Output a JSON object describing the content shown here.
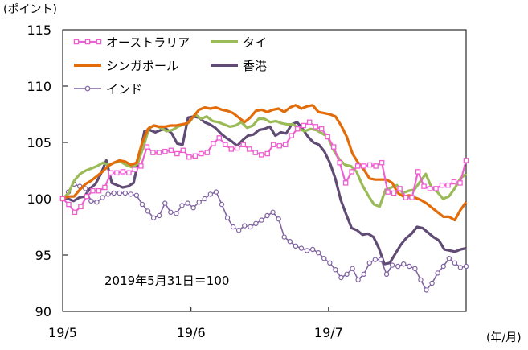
{
  "chart_data": {
    "type": "line",
    "unit_label": "(ポイント)",
    "x_unit_label": "(年/月)",
    "annotation": "2019年5月31日＝100",
    "ylim": [
      90,
      115
    ],
    "yticks": [
      90,
      95,
      100,
      105,
      110,
      115
    ],
    "xlim": [
      0,
      44
    ],
    "xticks": [
      {
        "x": 0,
        "label": "19/5"
      },
      {
        "x": 14,
        "label": "19/6"
      },
      {
        "x": 29,
        "label": "19/7"
      }
    ],
    "grid": false,
    "legend_position": "top-left",
    "series": [
      {
        "name": "オーストラリア",
        "color": "#ee5fd0",
        "marker": "square",
        "values": [
          100.0,
          99.5,
          98.8,
          99.3,
          100.2,
          100.7,
          100.7,
          101.0,
          102.3,
          102.3,
          102.4,
          102.3,
          102.6,
          102.9,
          104.6,
          104.1,
          104.1,
          104.2,
          104.3,
          104.0,
          104.3,
          103.7,
          103.8,
          104.0,
          104.1,
          104.9,
          105.4,
          104.8,
          104.4,
          104.5,
          104.8,
          104.4,
          104.1,
          103.9,
          104.0,
          104.8,
          104.7,
          104.8,
          105.6,
          106.2,
          106.5,
          106.8,
          106.4,
          106.2,
          105.5,
          104.6,
          103.2,
          101.4,
          102.4,
          102.9,
          102.9,
          103.0,
          102.9,
          103.2,
          100.6,
          100.5,
          100.9,
          100.1,
          100.1,
          102.4,
          101.1,
          100.9,
          100.9,
          101.2,
          101.2,
          101.5,
          101.4,
          103.4
        ]
      },
      {
        "name": "シンガポール",
        "color": "#e36c0a",
        "marker": "none",
        "values": [
          100.0,
          100.2,
          100.2,
          100.8,
          101.3,
          101.6,
          102.0,
          102.4,
          102.9,
          103.2,
          103.4,
          103.3,
          103.0,
          103.2,
          105.0,
          106.2,
          106.5,
          106.4,
          106.4,
          106.5,
          106.5,
          106.6,
          106.7,
          107.3,
          107.9,
          108.1,
          108.0,
          108.1,
          107.9,
          107.8,
          107.6,
          107.2,
          106.8,
          107.2,
          107.8,
          107.9,
          107.7,
          107.9,
          108.0,
          107.7,
          108.1,
          108.3,
          108.0,
          108.2,
          108.3,
          107.7,
          107.6,
          107.5,
          107.3,
          106.5,
          105.5,
          104.0,
          103.2,
          102.6,
          101.8,
          101.7,
          101.7,
          101.7,
          101.4,
          100.5,
          100.2,
          100.3,
          100.1,
          99.9,
          99.6,
          99.2,
          98.8,
          98.4,
          98.4,
          98.1,
          99.0,
          99.7
        ]
      },
      {
        "name": "インド",
        "color": "#8064a2",
        "marker": "circle",
        "values": [
          100.0,
          100.6,
          101.3,
          101.1,
          100.9,
          99.8,
          99.7,
          100.1,
          100.4,
          100.5,
          100.5,
          100.5,
          100.4,
          100.3,
          99.5,
          98.9,
          98.3,
          98.5,
          99.6,
          98.8,
          98.7,
          99.4,
          99.6,
          99.2,
          99.7,
          100.0,
          100.4,
          100.6,
          99.5,
          98.3,
          97.5,
          97.2,
          97.6,
          97.5,
          97.8,
          98.1,
          98.5,
          98.8,
          98.2,
          96.6,
          96.2,
          95.8,
          95.6,
          95.4,
          95.5,
          95.2,
          94.7,
          94.3,
          93.7,
          93.0,
          93.3,
          93.8,
          92.8,
          93.3,
          94.3,
          94.6,
          94.6,
          93.3,
          94.1,
          94.0,
          94.2,
          94.0,
          93.8,
          92.8,
          91.9,
          92.5,
          93.4,
          94.0,
          94.7,
          94.3,
          93.9,
          94.0
        ]
      },
      {
        "name": "タイ",
        "color": "#9bbb59",
        "marker": "none",
        "values": [
          100.0,
          100.5,
          101.6,
          102.2,
          102.5,
          102.7,
          102.9,
          103.2,
          103.0,
          103.2,
          103.3,
          103.0,
          102.8,
          103.1,
          104.6,
          106.3,
          106.5,
          106.3,
          106.0,
          106.1,
          106.4,
          106.6,
          106.8,
          107.5,
          107.1,
          107.3,
          106.9,
          106.8,
          106.6,
          106.4,
          106.5,
          106.8,
          106.3,
          106.5,
          107.1,
          107.1,
          106.8,
          106.9,
          106.7,
          106.6,
          106.6,
          106.2,
          106.0,
          106.2,
          106.1,
          105.8,
          105.5,
          104.3,
          103.5,
          103.0,
          102.9,
          102.4,
          101.2,
          100.3,
          99.5,
          99.3,
          100.8,
          101.0,
          101.2,
          100.5,
          100.7,
          100.8,
          101.5,
          102.2,
          101.0,
          100.6,
          100.0,
          100.2,
          100.9,
          101.8,
          102.2
        ]
      },
      {
        "name": "香港",
        "color": "#5f4b73",
        "marker": "none",
        "values": [
          100.0,
          100.0,
          99.8,
          100.1,
          100.2,
          100.9,
          101.3,
          102.2,
          103.4,
          101.4,
          101.2,
          101.0,
          101.1,
          101.4,
          103.6,
          106.0,
          106.1,
          105.9,
          106.1,
          106.2,
          105.8,
          104.9,
          104.8,
          107.2,
          107.3,
          107.2,
          106.8,
          106.6,
          106.3,
          105.8,
          105.4,
          105.1,
          104.7,
          105.2,
          105.6,
          105.7,
          106.1,
          106.2,
          106.4,
          105.6,
          105.9,
          105.8,
          106.6,
          106.8,
          106.2,
          105.5,
          105.0,
          104.8,
          104.2,
          103.2,
          101.8,
          99.9,
          98.6,
          97.4,
          97.2,
          96.8,
          96.9,
          96.6,
          95.6,
          94.2,
          94.3,
          95.1,
          95.9,
          96.5,
          96.9,
          97.5,
          97.4,
          97.0,
          96.6,
          96.3,
          95.5,
          95.4,
          95.3,
          95.5,
          95.6
        ]
      }
    ]
  }
}
